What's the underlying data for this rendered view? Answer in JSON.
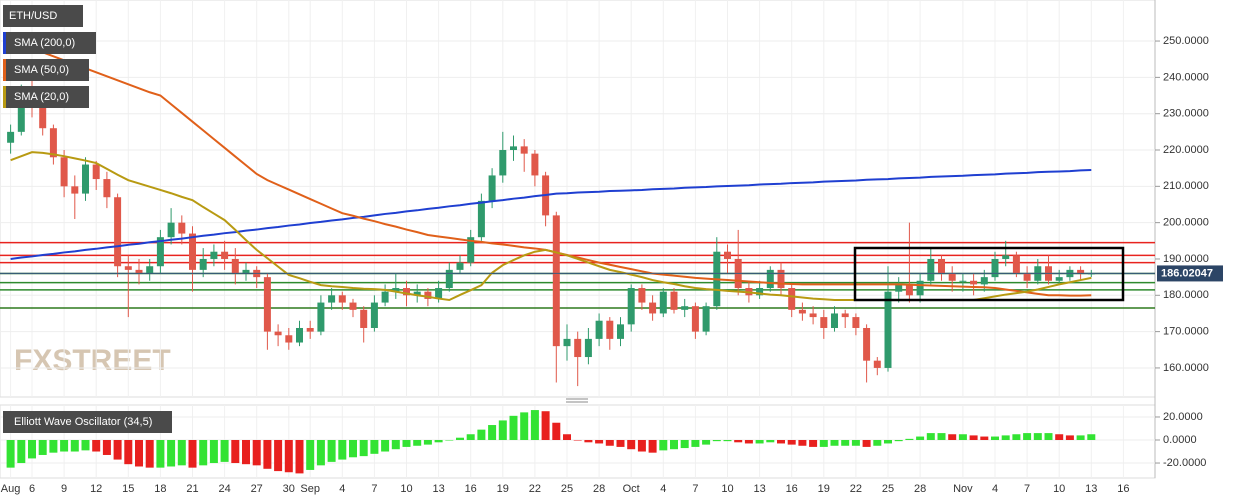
{
  "chart_data": [
    {
      "type": "candlestick",
      "title": "ETH/USD",
      "watermark": "FXSTREET",
      "categories": [
        "Aug",
        null,
        "6",
        null,
        null,
        "9",
        null,
        null,
        "12",
        null,
        null,
        "15",
        null,
        null,
        "18",
        null,
        null,
        "21",
        null,
        null,
        "24",
        null,
        null,
        "27",
        null,
        null,
        "30",
        null,
        "Sep",
        null,
        null,
        "4",
        null,
        null,
        "7",
        null,
        null,
        "10",
        null,
        null,
        "13",
        null,
        null,
        "16",
        null,
        null,
        "19",
        null,
        null,
        "22",
        null,
        null,
        "25",
        null,
        null,
        "28",
        null,
        null,
        "Oct",
        null,
        null,
        "4",
        null,
        null,
        "7",
        null,
        null,
        "10",
        null,
        null,
        "13",
        null,
        null,
        "16",
        null,
        null,
        "19",
        null,
        null,
        "22",
        null,
        null,
        "25",
        null,
        null,
        "28",
        null,
        null,
        null,
        "Nov",
        null,
        null,
        "4",
        null,
        null,
        "7",
        null,
        null,
        "10",
        null,
        null,
        "13",
        null,
        null,
        "16"
      ],
      "open": [
        222,
        225,
        235,
        232,
        226,
        218,
        210,
        208,
        216,
        212,
        207,
        188,
        187,
        186,
        188,
        196,
        200,
        197,
        187,
        190,
        192,
        190,
        186,
        187,
        185,
        170,
        169,
        167,
        171,
        170,
        178,
        180,
        178,
        176,
        171,
        178,
        181,
        182,
        180,
        181,
        179,
        182,
        187,
        189,
        196,
        206,
        213,
        220,
        221,
        219,
        213,
        202,
        166,
        168,
        163,
        168,
        173,
        168,
        172,
        182,
        178,
        175,
        181,
        176,
        177,
        170,
        177,
        192,
        190,
        182,
        180,
        182,
        187,
        182,
        176,
        175,
        174,
        171,
        175,
        174,
        171,
        162,
        160,
        181,
        183,
        180,
        184,
        190,
        186,
        184,
        184,
        183,
        185,
        190,
        191,
        186,
        184,
        188,
        184,
        185,
        187,
        186,
        null,
        null,
        null
      ],
      "high": [
        227,
        238,
        240,
        233,
        227,
        220,
        213,
        218,
        217,
        214,
        208,
        191,
        190,
        190,
        198,
        204,
        202,
        199,
        193,
        194,
        195,
        193,
        189,
        188,
        186,
        172,
        171,
        173,
        173,
        180,
        182,
        181,
        179,
        177,
        180,
        183,
        186,
        184,
        183,
        182,
        184,
        189,
        191,
        198,
        208,
        215,
        225,
        224,
        223,
        220,
        214,
        203,
        172,
        170,
        171,
        175,
        174,
        174,
        183,
        183,
        180,
        182,
        182,
        179,
        178,
        178,
        196,
        194,
        198,
        184,
        184,
        188,
        189,
        183,
        178,
        177,
        176,
        177,
        176,
        175,
        172,
        163,
        188,
        185,
        200,
        186,
        193,
        191,
        188,
        186,
        186,
        187,
        192,
        195,
        192,
        188,
        190,
        191,
        187,
        188,
        188,
        187,
        null,
        null,
        null
      ],
      "low": [
        219,
        224,
        229,
        224,
        216,
        207,
        201,
        206,
        209,
        204,
        185,
        174,
        183,
        184,
        186,
        194,
        194,
        181,
        185,
        188,
        187,
        183,
        184,
        182,
        165,
        166,
        165,
        166,
        168,
        169,
        176,
        176,
        174,
        167,
        170,
        177,
        179,
        177,
        178,
        177,
        178,
        181,
        186,
        188,
        195,
        204,
        211,
        217,
        214,
        210,
        199,
        156,
        162,
        155,
        161,
        166,
        165,
        166,
        170,
        176,
        173,
        174,
        175,
        174,
        168,
        169,
        176,
        186,
        180,
        178,
        179,
        181,
        180,
        174,
        173,
        172,
        168,
        170,
        171,
        169,
        156,
        158,
        159,
        178,
        178,
        178,
        183,
        184,
        181,
        181,
        180,
        181,
        184,
        188,
        185,
        182,
        183,
        183,
        183,
        184,
        184,
        185,
        null,
        null,
        null
      ],
      "close": [
        225,
        235,
        232,
        226,
        218,
        210,
        208,
        216,
        212,
        207,
        188,
        187,
        186,
        188,
        196,
        200,
        197,
        187,
        190,
        192,
        190,
        186,
        187,
        185,
        170,
        169,
        167,
        171,
        170,
        178,
        180,
        178,
        176,
        171,
        178,
        181,
        182,
        180,
        181,
        179,
        182,
        187,
        189,
        196,
        206,
        213,
        220,
        221,
        219,
        213,
        202,
        166,
        168,
        163,
        168,
        173,
        168,
        172,
        182,
        178,
        175,
        181,
        176,
        177,
        170,
        177,
        192,
        190,
        182,
        180,
        182,
        187,
        182,
        176,
        175,
        174,
        171,
        175,
        174,
        171,
        162,
        160,
        181,
        183,
        180,
        184,
        190,
        186,
        184,
        184,
        183,
        185,
        190,
        191,
        186,
        184,
        188,
        184,
        185,
        187,
        186,
        186.02,
        null,
        null,
        null
      ],
      "up_color": "#2f9a6c",
      "down_color": "#e0584a",
      "series": [
        {
          "name": "SMA (200,0)",
          "color": "#1f3fd1",
          "values": [
            190.0,
            190.4,
            190.7,
            191.1,
            191.4,
            191.8,
            192.1,
            192.5,
            192.8,
            193.2,
            193.5,
            193.9,
            194.2,
            194.6,
            194.9,
            195.3,
            195.6,
            196.0,
            196.4,
            196.7,
            197.1,
            197.4,
            197.8,
            198.1,
            198.5,
            198.8,
            199.2,
            199.5,
            199.9,
            200.2,
            200.6,
            200.9,
            201.3,
            201.6,
            202.0,
            202.4,
            202.7,
            203.1,
            203.4,
            203.8,
            204.1,
            204.5,
            204.8,
            205.2,
            205.5,
            205.9,
            206.2,
            206.6,
            206.9,
            207.3,
            207.6,
            208.0,
            208.1,
            208.3,
            208.4,
            208.5,
            208.7,
            208.8,
            208.9,
            209.0,
            209.2,
            209.3,
            209.4,
            209.6,
            209.7,
            209.8,
            210.0,
            210.1,
            210.2,
            210.3,
            210.5,
            210.6,
            210.7,
            210.9,
            211.0,
            211.1,
            211.3,
            211.4,
            211.5,
            211.6,
            211.8,
            211.9,
            212.0,
            212.2,
            212.3,
            212.4,
            212.6,
            212.7,
            212.8,
            212.9,
            213.1,
            213.2,
            213.3,
            213.5,
            213.6,
            213.7,
            213.9,
            214.0,
            214.1,
            214.2,
            214.4,
            214.5,
            null,
            null,
            null
          ]
        },
        {
          "name": "SMA (50,0)",
          "color": "#e0601a",
          "values": [
            251,
            249.5,
            248,
            246.9,
            245.8,
            244.7,
            243.6,
            242.5,
            241.4,
            240.3,
            239.2,
            238.1,
            237.0,
            235.9,
            235.0,
            232.6,
            230.2,
            227.8,
            225.4,
            223.0,
            220.6,
            218.2,
            215.8,
            213.4,
            211.7,
            210.4,
            209.1,
            207.8,
            206.5,
            205.2,
            203.9,
            202.6,
            201.9,
            201.1,
            200.4,
            199.6,
            198.9,
            198.1,
            197.4,
            196.6,
            196.2,
            195.8,
            195.4,
            195.0,
            194.7,
            194.3,
            194.0,
            193.6,
            193.2,
            192.9,
            192.5,
            191.8,
            191.1,
            190.4,
            189.7,
            189.0,
            188.4,
            187.8,
            187.2,
            186.6,
            186.0,
            185.7,
            185.4,
            185.1,
            184.8,
            184.6,
            184.4,
            184.2,
            184.0,
            183.8,
            183.6,
            183.4,
            183.2,
            183.1,
            183.0,
            183.0,
            183.0,
            183.0,
            183.0,
            183.0,
            183.0,
            183.0,
            183.0,
            183.0,
            182.9,
            182.8,
            182.7,
            182.6,
            182.5,
            182.4,
            182.3,
            182.2,
            182.0,
            181.6,
            181.2,
            180.8,
            180.4,
            180.0,
            180.0,
            179.9,
            179.9,
            180.0,
            null,
            null,
            null
          ]
        },
        {
          "name": "SMA (20,0)",
          "color": "#b89a12",
          "values": [
            217.2,
            218.3,
            219.4,
            219.2,
            218.8,
            218.3,
            217.7,
            217.1,
            216.4,
            214.8,
            213.2,
            211.7,
            210.8,
            209.9,
            209.0,
            208.1,
            207.1,
            206.2,
            204.3,
            202.5,
            200.7,
            198.0,
            195.2,
            192.5,
            190.2,
            187.9,
            185.6,
            184.7,
            183.7,
            182.8,
            182.5,
            182.3,
            182.0,
            181.8,
            181.7,
            181.5,
            181.0,
            180.5,
            180.0,
            179.6,
            179.1,
            178.7,
            180.1,
            181.4,
            182.8,
            186.2,
            188.3,
            189.7,
            191.0,
            192.0,
            192.5,
            191.8,
            191.0,
            190.0,
            189.0,
            188.0,
            187.0,
            186.4,
            185.7,
            185.0,
            184.2,
            183.6,
            183.1,
            182.5,
            182.0,
            181.7,
            181.5,
            181.2,
            181.0,
            180.8,
            180.5,
            180.2,
            180.0,
            179.7,
            179.4,
            179.1,
            178.9,
            178.7,
            178.7,
            178.7,
            178.7,
            178.7,
            178.7,
            178.7,
            178.7,
            178.7,
            178.7,
            178.7,
            178.7,
            178.7,
            178.7,
            179.2,
            179.7,
            180.2,
            180.6,
            181.0,
            181.6,
            182.3,
            183.0,
            183.6,
            184.2,
            184.8,
            null,
            null,
            null
          ]
        }
      ],
      "levels": [
        {
          "value": 194.5,
          "color": "#e8231e"
        },
        {
          "value": 191,
          "color": "#e8231e"
        },
        {
          "value": 189,
          "color": "#e8231e"
        },
        {
          "value": 186,
          "color": "#1f6d2a"
        },
        {
          "value": 183.5,
          "color": "#2e8a2e"
        },
        {
          "value": 181.5,
          "color": "#2e8a2e"
        },
        {
          "value": 176.5,
          "color": "#2e7a1e"
        }
      ],
      "last_price": {
        "value": 186.02047,
        "label": "186.02047"
      },
      "ylim": [
        152,
        261.3
      ],
      "yticks": [
        {
          "value": 160,
          "label": "160.0000"
        },
        {
          "value": 170,
          "label": "170.0000"
        },
        {
          "value": 180,
          "label": "180.0000"
        },
        {
          "value": 190,
          "label": "190.0000"
        },
        {
          "value": 200,
          "label": "200.0000"
        },
        {
          "value": 210,
          "label": "210.0000"
        },
        {
          "value": 220,
          "label": "220.0000"
        },
        {
          "value": 230,
          "label": "230.0000"
        },
        {
          "value": 240,
          "label": "240.0000"
        },
        {
          "value": 250,
          "label": "250.0000"
        }
      ],
      "grid": true
    },
    {
      "type": "bar",
      "title": "Elliott Wave Oscillator (34,5)",
      "values": [
        -24,
        -20,
        -16,
        -13,
        -11,
        -10,
        -10,
        -9,
        -10,
        -13,
        -17,
        -21,
        -23,
        -24,
        -24,
        -23,
        -22,
        -24,
        -22,
        -20,
        -19,
        -20,
        -21,
        -22,
        -25,
        -27,
        -28,
        -29,
        -26,
        -22,
        -19,
        -17,
        -15,
        -14,
        -12,
        -10,
        -8,
        -6,
        -5,
        -4,
        -2,
        0,
        2,
        5,
        9,
        13,
        17,
        21,
        24,
        26,
        25,
        15,
        5,
        0,
        -2,
        -3,
        -5,
        -6,
        -8,
        -10,
        -11,
        -9,
        -8,
        -7,
        -6,
        -4,
        -1,
        -1,
        -2,
        -3,
        -3,
        -2,
        -3,
        -4,
        -5,
        -6,
        -6,
        -5,
        -5,
        -5,
        -6,
        -5,
        -3,
        -1,
        1,
        3,
        6,
        6,
        5,
        5,
        4,
        3,
        3,
        4,
        5,
        6,
        6,
        6,
        5,
        4,
        4,
        5,
        null,
        null,
        null
      ],
      "up_color": "#33e333",
      "down_color": "#e8201e",
      "ylim": [
        -33,
        30.4
      ],
      "yticks": [
        {
          "value": 20,
          "label": "20.0000"
        },
        {
          "value": 0,
          "label": "0.0000"
        },
        {
          "value": -20,
          "label": "-20.0000"
        }
      ],
      "grid": true
    }
  ]
}
